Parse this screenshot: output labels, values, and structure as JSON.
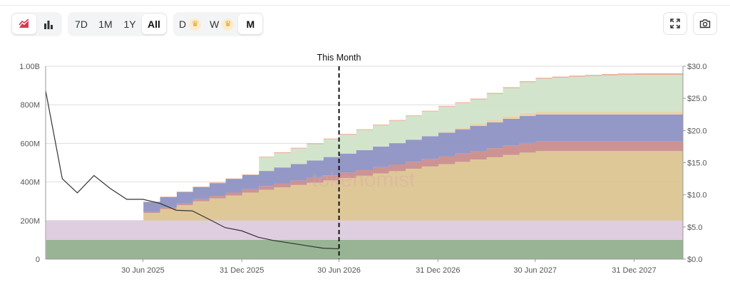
{
  "toolbar": {
    "chart_type_buttons": [
      {
        "icon": "area-chart-icon",
        "active": true
      },
      {
        "icon": "bar-chart-icon",
        "active": false
      }
    ],
    "ranges": [
      {
        "label": "7D",
        "active": false
      },
      {
        "label": "1M",
        "active": false
      },
      {
        "label": "1Y",
        "active": false
      },
      {
        "label": "All",
        "active": true
      }
    ],
    "granularity": [
      {
        "label": "D",
        "premium": true,
        "active": false
      },
      {
        "label": "W",
        "premium": true,
        "active": false
      },
      {
        "label": "M",
        "premium": false,
        "active": true
      }
    ],
    "fullscreen_icon": "fullscreen-icon",
    "screenshot_icon": "camera-icon"
  },
  "watermark": "tokenomist",
  "chart_data": {
    "type": "area",
    "title": "",
    "current_marker": {
      "label": "This Month",
      "x": "2026-06-30"
    },
    "x_ticks": [
      {
        "label": "30 Jun 2025",
        "date": "2025-06-30"
      },
      {
        "label": "31 Dec 2025",
        "date": "2025-12-31"
      },
      {
        "label": "30 Jun 2026",
        "date": "2026-06-30"
      },
      {
        "label": "31 Dec 2026",
        "date": "2026-12-31"
      },
      {
        "label": "30 Jun 2027",
        "date": "2027-06-30"
      },
      {
        "label": "31 Dec 2027",
        "date": "2027-12-31"
      }
    ],
    "x_range": [
      "2024-12-31",
      "2028-03-31"
    ],
    "y_left": {
      "ticks": [
        "0",
        "200M",
        "400M",
        "600M",
        "800M",
        "1.00B"
      ],
      "values": [
        0,
        200,
        400,
        600,
        800,
        1000
      ],
      "unit": "M tokens",
      "range": [
        0,
        1000
      ]
    },
    "y_right": {
      "ticks": [
        "$0.0",
        "$5.0",
        "$10.0",
        "$15.0",
        "$20.0",
        "$25.0",
        "$30.0"
      ],
      "values": [
        0,
        5,
        10,
        15,
        20,
        25,
        30
      ],
      "range": [
        0,
        30
      ]
    },
    "grid": true,
    "months": [
      "2025-01",
      "2025-02",
      "2025-03",
      "2025-04",
      "2025-05",
      "2025-06",
      "2025-07",
      "2025-08",
      "2025-09",
      "2025-10",
      "2025-11",
      "2025-12",
      "2026-01",
      "2026-02",
      "2026-03",
      "2026-04",
      "2026-05",
      "2026-06",
      "2026-07",
      "2026-08",
      "2026-09",
      "2026-10",
      "2026-11",
      "2026-12",
      "2027-01",
      "2027-02",
      "2027-03",
      "2027-04",
      "2027-05",
      "2027-06",
      "2027-07",
      "2027-08",
      "2027-09",
      "2027-10",
      "2027-11",
      "2027-12",
      "2028-01",
      "2028-02",
      "2028-03"
    ],
    "series": [
      {
        "color": "#8fae8b",
        "values": [
          100,
          100,
          100,
          100,
          100,
          100,
          100,
          100,
          100,
          100,
          100,
          100,
          100,
          100,
          100,
          100,
          100,
          100,
          100,
          100,
          100,
          100,
          100,
          100,
          100,
          100,
          100,
          100,
          100,
          100,
          100,
          100,
          100,
          100,
          100,
          100,
          100,
          100,
          100
        ]
      },
      {
        "color": "#dcc9dd",
        "values": [
          100,
          100,
          100,
          100,
          100,
          100,
          100,
          100,
          100,
          100,
          100,
          100,
          100,
          100,
          100,
          100,
          100,
          100,
          100,
          100,
          100,
          100,
          100,
          100,
          100,
          100,
          100,
          100,
          100,
          100,
          100,
          100,
          100,
          100,
          100,
          100,
          100,
          100,
          100
        ]
      },
      {
        "color": "#dcc38f",
        "values": [
          0,
          0,
          0,
          0,
          0,
          0,
          40,
          60,
          80,
          100,
          115,
          130,
          145,
          160,
          172,
          184,
          196,
          208,
          220,
          232,
          244,
          256,
          268,
          280,
          292,
          304,
          316,
          328,
          340,
          352,
          360,
          360,
          360,
          360,
          360,
          360,
          360,
          360,
          360
        ]
      },
      {
        "color": "#c98a8a",
        "values": [
          0,
          0,
          0,
          0,
          0,
          0,
          5,
          7,
          9,
          11,
          13,
          15,
          17,
          19,
          21,
          23,
          25,
          27,
          29,
          31,
          33,
          35,
          37,
          39,
          41,
          43,
          45,
          47,
          49,
          50,
          50,
          50,
          50,
          50,
          50,
          50,
          50,
          50,
          50
        ]
      },
      {
        "color": "#8a8fc2",
        "values": [
          0,
          0,
          0,
          0,
          0,
          0,
          50,
          54,
          58,
          62,
          66,
          70,
          74,
          78,
          82,
          86,
          90,
          94,
          98,
          102,
          106,
          110,
          114,
          118,
          122,
          126,
          130,
          134,
          138,
          140,
          140,
          140,
          140,
          140,
          140,
          140,
          140,
          140,
          140
        ]
      },
      {
        "color": "#e8cfa3",
        "values": [
          0,
          0,
          0,
          0,
          0,
          0,
          0,
          0,
          0,
          0,
          0,
          0,
          0,
          0,
          0,
          0,
          0,
          0,
          0,
          0,
          0,
          0,
          0,
          0,
          5,
          8,
          10,
          12,
          14,
          15,
          15,
          15,
          15,
          15,
          15,
          15,
          15,
          15,
          15
        ]
      },
      {
        "color": "#cfe2c8",
        "values": [
          0,
          0,
          0,
          0,
          0,
          0,
          0,
          0,
          0,
          0,
          0,
          0,
          0,
          70,
          75,
          80,
          85,
          92,
          98,
          104,
          110,
          116,
          122,
          128,
          130,
          128,
          126,
          135,
          145,
          160,
          170,
          175,
          180,
          184,
          187,
          190,
          190,
          190,
          190
        ]
      },
      {
        "color": "#e8a98e",
        "values": [
          0,
          0,
          0,
          0,
          0,
          0,
          3,
          3,
          3,
          3,
          3,
          3,
          3,
          4,
          4,
          4,
          4,
          4,
          4,
          4,
          4,
          4,
          4,
          4,
          4,
          4,
          5,
          5,
          5,
          5,
          5,
          6,
          6,
          6,
          7,
          7,
          8,
          8,
          8
        ]
      }
    ],
    "price_line": {
      "color": "#333333",
      "points": [
        {
          "x": "2024-12-31",
          "y": 26.2
        },
        {
          "x": "2025-01-31",
          "y": 12.5
        },
        {
          "x": "2025-02-28",
          "y": 10.3
        },
        {
          "x": "2025-03-31",
          "y": 13.0
        },
        {
          "x": "2025-04-30",
          "y": 11.0
        },
        {
          "x": "2025-05-31",
          "y": 9.3
        },
        {
          "x": "2025-06-30",
          "y": 9.3
        },
        {
          "x": "2025-07-31",
          "y": 8.7
        },
        {
          "x": "2025-08-31",
          "y": 7.6
        },
        {
          "x": "2025-09-30",
          "y": 7.5
        },
        {
          "x": "2025-10-31",
          "y": 6.2
        },
        {
          "x": "2025-11-30",
          "y": 4.9
        },
        {
          "x": "2025-12-31",
          "y": 4.4
        },
        {
          "x": "2026-01-31",
          "y": 3.4
        },
        {
          "x": "2026-02-28",
          "y": 2.9
        },
        {
          "x": "2026-03-31",
          "y": 2.5
        },
        {
          "x": "2026-04-30",
          "y": 2.1
        },
        {
          "x": "2026-05-31",
          "y": 1.7
        },
        {
          "x": "2026-06-30",
          "y": 1.6
        }
      ]
    }
  }
}
